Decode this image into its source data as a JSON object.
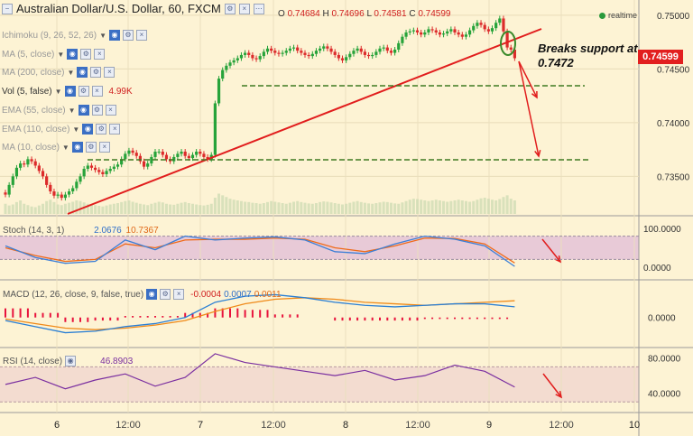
{
  "header": {
    "title": "Australian Dollar/U.S. Dollar, 60, FXCM",
    "ohlc": [
      {
        "key": "O",
        "value": "0.74684"
      },
      {
        "key": "H",
        "value": "0.74696"
      },
      {
        "key": "L",
        "value": "0.74581"
      },
      {
        "key": "C",
        "value": "0.74599"
      }
    ],
    "realtime_label": "realtime"
  },
  "indicators_legend": [
    {
      "label": "Ichimoku (9, 26, 52, 26)",
      "value": ""
    },
    {
      "label": "MA (5, close)",
      "value": ""
    },
    {
      "label": "MA (200, close)",
      "value": ""
    },
    {
      "label": "Vol (5, false)",
      "value": "4.99K"
    },
    {
      "label": "EMA (55, close)",
      "value": ""
    },
    {
      "label": "EMA (110, close)",
      "value": ""
    },
    {
      "label": "MA (10, close)",
      "value": ""
    }
  ],
  "annotation": {
    "line1": "Breaks support at",
    "line2": "0.7472"
  },
  "last_price_tag": "0.74599",
  "colors": {
    "background": "#fdf3d4",
    "bull_candle": "#27a33a",
    "bear_candle": "#dc2b2b",
    "trendline": "#e11d1d",
    "support_line": "#3f7a22",
    "stoch_k": "#3d7fd6",
    "stoch_d": "#ef6a1a",
    "macd_line": "#2a7fd4",
    "signal_line": "#ef8a1a",
    "hist": "#e8123c",
    "rsi": "#7a2fa0",
    "stoch_band": "#e8cad7",
    "rsi_band": "#f3dcd0"
  },
  "chart_data": [
    {
      "type": "candlestick",
      "name": "price",
      "xlabel": "",
      "ylabel": "",
      "x_tick_labels": [
        "6",
        "12:00",
        "7",
        "12:00",
        "8",
        "12:00",
        "9",
        "12:00",
        "10"
      ],
      "y_ticks": [
        "0.75000",
        "0.74500",
        "0.74000",
        "0.73500"
      ],
      "ylim": [
        0.7315,
        0.751
      ],
      "x": [
        0,
        1,
        2,
        3,
        4,
        5,
        6,
        7,
        8,
        9,
        10,
        11,
        12,
        13,
        14,
        15,
        16,
        17,
        18,
        19,
        20,
        21,
        22,
        23,
        24,
        25,
        26,
        27,
        28,
        29,
        30,
        31,
        32,
        33,
        34,
        35,
        36,
        37,
        38,
        39,
        40,
        41,
        42,
        43,
        44,
        45,
        46,
        47,
        48,
        49,
        50,
        51,
        52,
        53,
        54,
        55,
        56,
        57,
        58,
        59,
        60,
        61,
        62,
        63,
        64,
        65,
        66,
        67,
        68,
        69,
        70,
        71,
        72,
        73,
        74,
        75,
        76,
        77,
        78,
        79,
        80,
        81,
        82,
        83,
        84,
        85,
        86,
        87,
        88,
        89,
        90,
        91,
        92,
        93,
        94,
        95,
        96,
        97,
        98,
        99,
        100,
        101,
        102,
        103,
        104,
        105,
        106,
        107,
        108,
        109,
        110,
        111,
        112,
        113,
        114,
        115,
        116,
        117,
        118,
        119,
        120,
        121,
        122,
        123,
        124,
        125,
        126,
        127,
        128,
        129,
        130,
        131,
        132,
        133,
        134,
        135,
        136
      ],
      "open": [
        0.7335,
        0.7333,
        0.7342,
        0.735,
        0.7358,
        0.7362,
        0.7361,
        0.7366,
        0.7364,
        0.736,
        0.7355,
        0.735,
        0.7342,
        0.7336,
        0.7332,
        0.7333,
        0.733,
        0.7333,
        0.7336,
        0.7339,
        0.7345,
        0.735,
        0.7357,
        0.736,
        0.7358,
        0.7356,
        0.7354,
        0.7352,
        0.7355,
        0.7357,
        0.7359,
        0.7361,
        0.7366,
        0.7371,
        0.7374,
        0.7372,
        0.7369,
        0.7364,
        0.7359,
        0.7362,
        0.7368,
        0.7373,
        0.7373,
        0.737,
        0.7366,
        0.7364,
        0.7368,
        0.7371,
        0.7373,
        0.7369,
        0.7367,
        0.737,
        0.7373,
        0.7371,
        0.7368,
        0.7366,
        0.737,
        0.7418,
        0.7441,
        0.7449,
        0.7453,
        0.7456,
        0.7458,
        0.746,
        0.7463,
        0.7465,
        0.7463,
        0.746,
        0.7459,
        0.7462,
        0.7466,
        0.7469,
        0.7467,
        0.7465,
        0.7464,
        0.7465,
        0.7467,
        0.7469,
        0.747,
        0.7467,
        0.7465,
        0.7463,
        0.7462,
        0.7464,
        0.7467,
        0.7469,
        0.7471,
        0.7469,
        0.7466,
        0.7463,
        0.746,
        0.7458,
        0.7461,
        0.7464,
        0.7467,
        0.7469,
        0.7466,
        0.7463,
        0.7462,
        0.7463,
        0.7466,
        0.7469,
        0.747,
        0.7467,
        0.7465,
        0.7468,
        0.7474,
        0.748,
        0.7484,
        0.7485,
        0.7486,
        0.7484,
        0.7482,
        0.7484,
        0.7487,
        0.7486,
        0.7484,
        0.7482,
        0.7483,
        0.7485,
        0.7487,
        0.7484,
        0.7482,
        0.748,
        0.7482,
        0.7486,
        0.749,
        0.7493,
        0.7491,
        0.7487,
        0.7485,
        0.7488,
        0.7493,
        0.7497,
        0.7485,
        0.747,
        0.7468
      ],
      "close": [
        0.7333,
        0.7342,
        0.735,
        0.7358,
        0.7362,
        0.7361,
        0.7366,
        0.7364,
        0.736,
        0.7355,
        0.735,
        0.7342,
        0.7336,
        0.7332,
        0.7333,
        0.733,
        0.7333,
        0.7336,
        0.7339,
        0.7345,
        0.735,
        0.7357,
        0.736,
        0.7358,
        0.7356,
        0.7354,
        0.7352,
        0.7355,
        0.7357,
        0.7359,
        0.7361,
        0.7366,
        0.7371,
        0.7374,
        0.7372,
        0.7369,
        0.7364,
        0.7359,
        0.7362,
        0.7368,
        0.7373,
        0.7373,
        0.737,
        0.7366,
        0.7364,
        0.7368,
        0.7371,
        0.7373,
        0.7369,
        0.7367,
        0.737,
        0.7373,
        0.7371,
        0.7368,
        0.7366,
        0.737,
        0.7418,
        0.7441,
        0.7449,
        0.7453,
        0.7456,
        0.7458,
        0.746,
        0.7463,
        0.7465,
        0.7463,
        0.746,
        0.7459,
        0.7462,
        0.7466,
        0.7469,
        0.7467,
        0.7465,
        0.7464,
        0.7465,
        0.7467,
        0.7469,
        0.747,
        0.7467,
        0.7465,
        0.7463,
        0.7462,
        0.7464,
        0.7467,
        0.7469,
        0.7471,
        0.7469,
        0.7466,
        0.7463,
        0.746,
        0.7458,
        0.7461,
        0.7464,
        0.7467,
        0.7469,
        0.7466,
        0.7463,
        0.7462,
        0.7463,
        0.7466,
        0.7469,
        0.747,
        0.7467,
        0.7465,
        0.7468,
        0.7474,
        0.748,
        0.7484,
        0.7485,
        0.7486,
        0.7484,
        0.7482,
        0.7484,
        0.7487,
        0.7486,
        0.7484,
        0.7482,
        0.7483,
        0.7485,
        0.7487,
        0.7484,
        0.7482,
        0.748,
        0.7482,
        0.7486,
        0.749,
        0.7493,
        0.7491,
        0.7487,
        0.7485,
        0.7488,
        0.7493,
        0.7497,
        0.7485,
        0.747,
        0.7468,
        0.746
      ],
      "volume": [
        30,
        25,
        28,
        35,
        40,
        30,
        26,
        22,
        20,
        25,
        30,
        38,
        42,
        35,
        28,
        26,
        30,
        33,
        36,
        40,
        38,
        34,
        30,
        28,
        26,
        24,
        22,
        25,
        28,
        30,
        32,
        35,
        38,
        40,
        36,
        33,
        30,
        28,
        26,
        30,
        33,
        36,
        34,
        30,
        28,
        27,
        30,
        33,
        35,
        32,
        30,
        28,
        26,
        25,
        27,
        30,
        48,
        60,
        55,
        50,
        45,
        42,
        40,
        38,
        36,
        35,
        33,
        32,
        30,
        32,
        35,
        38,
        36,
        34,
        32,
        30,
        33,
        36,
        38,
        35,
        33,
        31,
        30,
        32,
        35,
        37,
        36,
        34,
        32,
        30,
        28,
        30,
        33,
        36,
        38,
        35,
        33,
        31,
        30,
        32,
        34,
        36,
        35,
        33,
        31,
        30,
        34,
        38,
        42,
        45,
        44,
        42,
        40,
        38,
        40,
        42,
        40,
        38,
        36,
        38,
        40,
        42,
        40,
        38,
        36,
        38,
        42,
        46,
        48,
        45,
        42,
        40,
        44,
        50,
        55,
        45,
        40
      ]
    },
    {
      "type": "line",
      "name": "Stoch (14, 3, 1)",
      "labels": [
        "2.0676",
        "10.7367"
      ],
      "ylim": [
        0,
        100
      ],
      "y_ticks": [
        "100.0000",
        "0.0000"
      ],
      "x": [
        0,
        8,
        16,
        24,
        32,
        40,
        48,
        56,
        64,
        72,
        80,
        88,
        96,
        104,
        112,
        120,
        128,
        136
      ],
      "series": [
        {
          "values": [
            55,
            25,
            10,
            15,
            70,
            45,
            80,
            70,
            75,
            78,
            70,
            40,
            35,
            60,
            80,
            72,
            55,
            2
          ]
        },
        {
          "values": [
            50,
            30,
            15,
            20,
            60,
            50,
            70,
            72,
            72,
            75,
            72,
            50,
            40,
            55,
            75,
            74,
            60,
            11
          ]
        }
      ]
    },
    {
      "type": "line",
      "name": "MACD (12, 26, close, 9, false, true)",
      "labels": [
        "-0.0004",
        "0.0007",
        "0.0011"
      ],
      "y_ticks": [
        "0.0000"
      ],
      "ylim": [
        -0.0015,
        0.002
      ],
      "x": [
        0,
        8,
        16,
        24,
        32,
        40,
        48,
        56,
        64,
        72,
        80,
        88,
        96,
        104,
        112,
        120,
        128,
        136
      ],
      "series": [
        {
          "values": [
            -0.0002,
            -0.0006,
            -0.001,
            -0.0009,
            -0.0006,
            -0.0004,
            0.0,
            0.001,
            0.0014,
            0.0015,
            0.0013,
            0.001,
            0.0008,
            0.0007,
            0.0008,
            0.0009,
            0.0009,
            0.0007
          ]
        },
        {
          "values": [
            -0.0001,
            -0.0004,
            -0.0007,
            -0.0008,
            -0.0007,
            -0.0005,
            -0.0002,
            0.0004,
            0.0009,
            0.0012,
            0.0013,
            0.0012,
            0.001,
            0.0009,
            0.0008,
            0.0009,
            0.001,
            0.0011
          ]
        },
        {
          "values": [
            0.0006,
            0.0003,
            -0.0003,
            -0.0002,
            0.0001,
            0.0001,
            0.0003,
            0.0006,
            0.0005,
            0.0002,
            0.0,
            -0.0002,
            -0.0002,
            -0.0002,
            -0.0001,
            -0.0001,
            -0.0001,
            -0.0004
          ]
        }
      ]
    },
    {
      "type": "line",
      "name": "RSI (14, close)",
      "labels": [
        "46.8903"
      ],
      "ylim": [
        20,
        90
      ],
      "y_ticks": [
        "80.0000",
        "40.0000"
      ],
      "x": [
        0,
        8,
        16,
        24,
        32,
        40,
        48,
        56,
        64,
        72,
        80,
        88,
        96,
        104,
        112,
        120,
        128,
        136
      ],
      "values": [
        50,
        58,
        45,
        55,
        62,
        48,
        58,
        85,
        75,
        70,
        65,
        60,
        66,
        55,
        60,
        72,
        65,
        47
      ]
    }
  ]
}
